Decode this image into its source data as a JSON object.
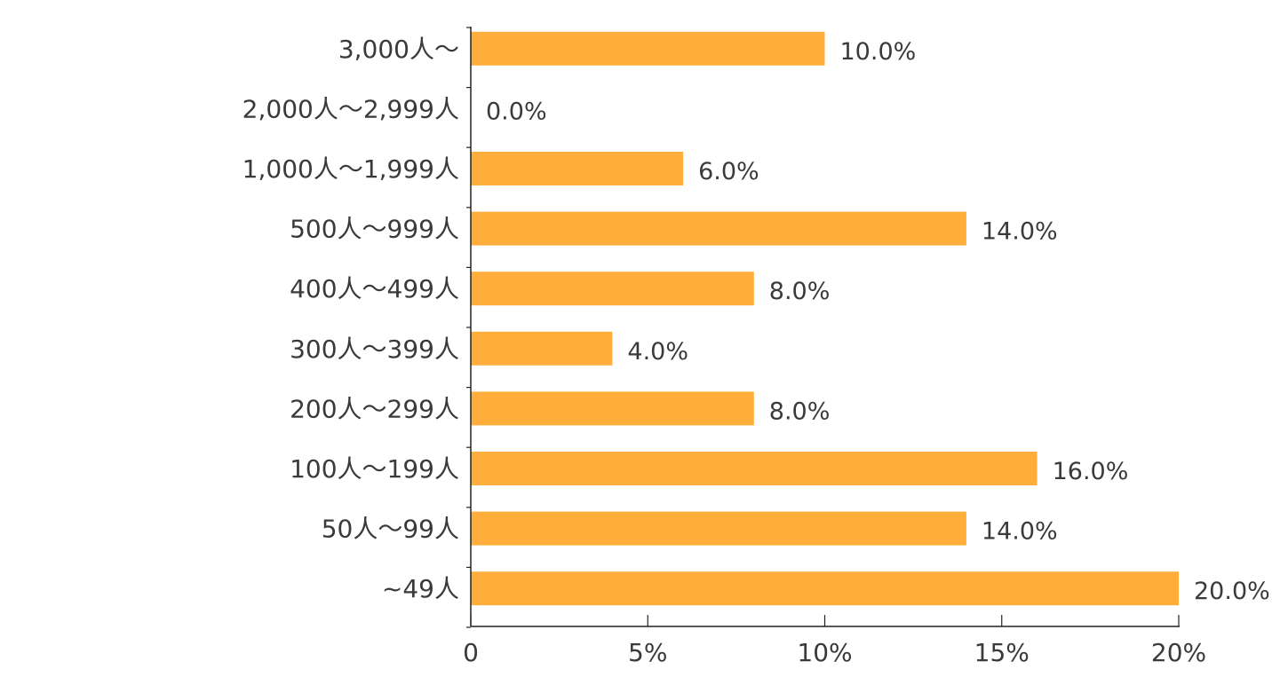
{
  "chart_data": {
    "type": "bar",
    "orientation": "horizontal",
    "categories": [
      "3,000人～",
      "2,000人～2,999人",
      "1,000人～1,999人",
      "500人～999人",
      "400人～499人",
      "300人～399人",
      "200人～299人",
      "100人～199人",
      "50人～99人",
      "~49人"
    ],
    "values": [
      10.0,
      0.0,
      6.0,
      14.0,
      8.0,
      4.0,
      8.0,
      16.0,
      14.0,
      20.0
    ],
    "data_labels": [
      "10.0%",
      "0.0%",
      "6.0%",
      "14.0%",
      "8.0%",
      "4.0%",
      "8.0%",
      "16.0%",
      "14.0%",
      "20.0%"
    ],
    "x_ticks": [
      0,
      5,
      10,
      15,
      20
    ],
    "x_tick_labels": [
      "0",
      "5%",
      "10%",
      "15%",
      "20%"
    ],
    "xlim": [
      0,
      20
    ],
    "grid": false,
    "legend": "none",
    "bar_color": "#FFAE3B",
    "axis_color": "#222222",
    "text_color": "#3a3a3a"
  }
}
